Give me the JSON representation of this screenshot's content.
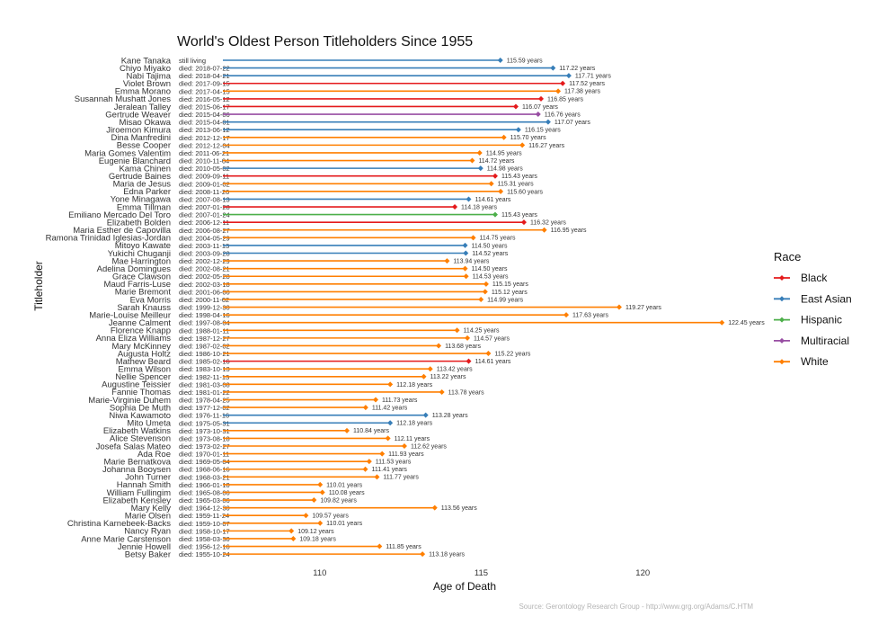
{
  "chart_data": {
    "type": "lollipop",
    "title": "World's Oldest Person Titleholders Since 1955",
    "xlabel": "Age of Death",
    "ylabel": "Titleholder",
    "xticks": [
      110,
      115,
      120
    ],
    "xlim": [
      107.0,
      123.5
    ],
    "caption": "Source: Gerontology Research Group - http://www.grg.org/Adams/C.HTM",
    "legend": {
      "title": "Race",
      "position": "right",
      "items": [
        {
          "label": "Black",
          "color": "#e41a1c"
        },
        {
          "label": "East Asian",
          "color": "#377eb8"
        },
        {
          "label": "Hispanic",
          "color": "#4daf4a"
        },
        {
          "label": "Multiracial",
          "color": "#984ea3"
        },
        {
          "label": "White",
          "color": "#ff7f00"
        }
      ]
    },
    "grid": false,
    "rows": [
      {
        "name": "Kane Tanaka",
        "died": "still living",
        "age": 115.59,
        "label": "115.59 years",
        "race": "East Asian"
      },
      {
        "name": "Chiyo Miyako",
        "died": "died: 2018-07-22",
        "age": 117.22,
        "label": "117.22 years",
        "race": "East Asian"
      },
      {
        "name": "Nabi Tajima",
        "died": "died: 2018-04-21",
        "age": 117.71,
        "label": "117.71 years",
        "race": "East Asian"
      },
      {
        "name": "Violet Brown",
        "died": "died: 2017-09-15",
        "age": 117.52,
        "label": "117.52 years",
        "race": "Black"
      },
      {
        "name": "Emma Morano",
        "died": "died: 2017-04-15",
        "age": 117.38,
        "label": "117.38 years",
        "race": "White"
      },
      {
        "name": "Susannah Mushatt Jones",
        "died": "died: 2016-05-12",
        "age": 116.85,
        "label": "116.85 years",
        "race": "Black"
      },
      {
        "name": "Jeralean Talley",
        "died": "died: 2015-06-17",
        "age": 116.07,
        "label": "116.07 years",
        "race": "Black"
      },
      {
        "name": "Gertrude Weaver",
        "died": "died: 2015-04-06",
        "age": 116.76,
        "label": "116.76 years",
        "race": "Multiracial"
      },
      {
        "name": "Misao Okawa",
        "died": "died: 2015-04-01",
        "age": 117.07,
        "label": "117.07 years",
        "race": "East Asian"
      },
      {
        "name": "Jiroemon Kimura",
        "died": "died: 2013-06-12",
        "age": 116.15,
        "label": "116.15 years",
        "race": "East Asian"
      },
      {
        "name": "Dina Manfredini",
        "died": "died: 2012-12-17",
        "age": 115.7,
        "label": "115.70 years",
        "race": "White"
      },
      {
        "name": "Besse Cooper",
        "died": "died: 2012-12-04",
        "age": 116.27,
        "label": "116.27 years",
        "race": "White"
      },
      {
        "name": "Maria Gomes Valentim",
        "died": "died: 2011-06-21",
        "age": 114.95,
        "label": "114.95 years",
        "race": "White"
      },
      {
        "name": "Eugenie Blanchard",
        "died": "died: 2010-11-04",
        "age": 114.72,
        "label": "114.72 years",
        "race": "White"
      },
      {
        "name": "Kama Chinen",
        "died": "died: 2010-05-02",
        "age": 114.98,
        "label": "114.98 years",
        "race": "East Asian"
      },
      {
        "name": "Gertrude Baines",
        "died": "died: 2009-09-11",
        "age": 115.43,
        "label": "115.43 years",
        "race": "Black"
      },
      {
        "name": "Maria de Jesus",
        "died": "died: 2009-01-02",
        "age": 115.31,
        "label": "115.31 years",
        "race": "White"
      },
      {
        "name": "Edna Parker",
        "died": "died: 2008-11-26",
        "age": 115.6,
        "label": "115.60 years",
        "race": "White"
      },
      {
        "name": "Yone Minagawa",
        "died": "died: 2007-08-13",
        "age": 114.61,
        "label": "114.61 years",
        "race": "East Asian"
      },
      {
        "name": "Emma Tillman",
        "died": "died: 2007-01-28",
        "age": 114.18,
        "label": "114.18 years",
        "race": "Black"
      },
      {
        "name": "Emiliano Mercado Del Toro",
        "died": "died: 2007-01-24",
        "age": 115.43,
        "label": "115.43 years",
        "race": "Hispanic"
      },
      {
        "name": "Elizabeth Bolden",
        "died": "died: 2006-12-11",
        "age": 116.32,
        "label": "116.32 years",
        "race": "Black"
      },
      {
        "name": "Maria Esther de Capovilla",
        "died": "died: 2006-08-27",
        "age": 116.95,
        "label": "116.95 years",
        "race": "White"
      },
      {
        "name": "Ramona Trinidad Iglesias-Jordan",
        "died": "died: 2004-05-29",
        "age": 114.75,
        "label": "114.75 years",
        "race": "White"
      },
      {
        "name": "Mitoyo Kawate",
        "died": "died: 2003-11-13",
        "age": 114.5,
        "label": "114.50 years",
        "race": "East Asian"
      },
      {
        "name": "Yukichi Chuganji",
        "died": "died: 2003-09-28",
        "age": 114.52,
        "label": "114.52 years",
        "race": "East Asian"
      },
      {
        "name": "Mae Harrington",
        "died": "died: 2002-12-29",
        "age": 113.94,
        "label": "113.94 years",
        "race": "White"
      },
      {
        "name": "Adelina Domingues",
        "died": "died: 2002-08-21",
        "age": 114.5,
        "label": "114.50 years",
        "race": "White"
      },
      {
        "name": "Grace Clawson",
        "died": "died: 2002-05-28",
        "age": 114.53,
        "label": "114.53 years",
        "race": "White"
      },
      {
        "name": "Maud Farris-Luse",
        "died": "died: 2002-03-18",
        "age": 115.15,
        "label": "115.15 years",
        "race": "White"
      },
      {
        "name": "Marie Bremont",
        "died": "died: 2001-06-06",
        "age": 115.12,
        "label": "115.12 years",
        "race": "White"
      },
      {
        "name": "Eva Morris",
        "died": "died: 2000-11-02",
        "age": 114.99,
        "label": "114.99 years",
        "race": "White"
      },
      {
        "name": "Sarah Knauss",
        "died": "died: 1999-12-30",
        "age": 119.27,
        "label": "119.27 years",
        "race": "White"
      },
      {
        "name": "Marie-Louise Meilleur",
        "died": "died: 1998-04-16",
        "age": 117.63,
        "label": "117.63 years",
        "race": "White"
      },
      {
        "name": "Jeanne Calment",
        "died": "died: 1997-08-04",
        "age": 122.45,
        "label": "122.45 years",
        "race": "White"
      },
      {
        "name": "Florence Knapp",
        "died": "died: 1988-01-11",
        "age": 114.25,
        "label": "114.25 years",
        "race": "White"
      },
      {
        "name": "Anna Eliza Williams",
        "died": "died: 1987-12-27",
        "age": 114.57,
        "label": "114.57 years",
        "race": "White"
      },
      {
        "name": "Mary McKinney",
        "died": "died: 1987-02-02",
        "age": 113.68,
        "label": "113.68 years",
        "race": "White"
      },
      {
        "name": "Augusta Holtz",
        "died": "died: 1986-10-21",
        "age": 115.22,
        "label": "115.22 years",
        "race": "White"
      },
      {
        "name": "Mathew Beard",
        "died": "died: 1985-02-16",
        "age": 114.61,
        "label": "114.61 years",
        "race": "Black"
      },
      {
        "name": "Emma Wilson",
        "died": "died: 1983-10-13",
        "age": 113.42,
        "label": "113.42 years",
        "race": "White"
      },
      {
        "name": "Nellie Spencer",
        "died": "died: 1982-11-13",
        "age": 113.22,
        "label": "113.22 years",
        "race": "White"
      },
      {
        "name": "Augustine Teissier",
        "died": "died: 1981-03-08",
        "age": 112.18,
        "label": "112.18 years",
        "race": "White"
      },
      {
        "name": "Fannie Thomas",
        "died": "died: 1981-01-22",
        "age": 113.78,
        "label": "113.78 years",
        "race": "White"
      },
      {
        "name": "Marie-Virginie Duhem",
        "died": "died: 1978-04-25",
        "age": 111.73,
        "label": "111.73 years",
        "race": "White"
      },
      {
        "name": "Sophia De Muth",
        "died": "died: 1977-12-02",
        "age": 111.42,
        "label": "111.42 years",
        "race": "White"
      },
      {
        "name": "Niwa Kawamoto",
        "died": "died: 1976-11-16",
        "age": 113.28,
        "label": "113.28 years",
        "race": "East Asian"
      },
      {
        "name": "Mito Umeta",
        "died": "died: 1975-05-31",
        "age": 112.18,
        "label": "112.18 years",
        "race": "East Asian"
      },
      {
        "name": "Elizabeth Watkins",
        "died": "died: 1973-10-31",
        "age": 110.84,
        "label": "110.84 years",
        "race": "White"
      },
      {
        "name": "Alice Stevenson",
        "died": "died: 1973-08-18",
        "age": 112.11,
        "label": "112.11 years",
        "race": "White"
      },
      {
        "name": "Josefa Salas Mateo",
        "died": "died: 1973-02-27",
        "age": 112.62,
        "label": "112.62 years",
        "race": "White"
      },
      {
        "name": "Ada Roe",
        "died": "died: 1970-01-11",
        "age": 111.93,
        "label": "111.93 years",
        "race": "White"
      },
      {
        "name": "Marie Bernatkova",
        "died": "died: 1969-05-04",
        "age": 111.53,
        "label": "111.53 years",
        "race": "White"
      },
      {
        "name": "Johanna Booysen",
        "died": "died: 1968-06-16",
        "age": 111.41,
        "label": "111.41 years",
        "race": "White"
      },
      {
        "name": "John Turner",
        "died": "died: 1968-03-21",
        "age": 111.77,
        "label": "111.77 years",
        "race": "White"
      },
      {
        "name": "Hannah Smith",
        "died": "died: 1966-01-10",
        "age": 110.01,
        "label": "110.01 years",
        "race": "White"
      },
      {
        "name": "William Fullingim",
        "died": "died: 1965-08-06",
        "age": 110.08,
        "label": "110.08 years",
        "race": "White"
      },
      {
        "name": "Elizabeth Kensley",
        "died": "died: 1965-03-06",
        "age": 109.82,
        "label": "109.82 years",
        "race": "White"
      },
      {
        "name": "Mary Kelly",
        "died": "died: 1964-12-30",
        "age": 113.56,
        "label": "113.56 years",
        "race": "White"
      },
      {
        "name": "Marie Olsen",
        "died": "died: 1959-11-24",
        "age": 109.57,
        "label": "109.57 years",
        "race": "White"
      },
      {
        "name": "Christina Karnebeek-Backs",
        "died": "died: 1959-10-07",
        "age": 110.01,
        "label": "110.01 years",
        "race": "White"
      },
      {
        "name": "Nancy Ryan",
        "died": "died: 1958-10-17",
        "age": 109.12,
        "label": "109.12 years",
        "race": "White"
      },
      {
        "name": "Anne Marie Carstenson",
        "died": "died: 1958-03-30",
        "age": 109.18,
        "label": "109.18 years",
        "race": "White"
      },
      {
        "name": "Jennie Howell",
        "died": "died: 1956-12-16",
        "age": 111.85,
        "label": "111.85 years",
        "race": "White"
      },
      {
        "name": "Betsy Baker",
        "died": "died: 1955-10-24",
        "age": 113.18,
        "label": "113.18 years",
        "race": "White"
      }
    ]
  }
}
